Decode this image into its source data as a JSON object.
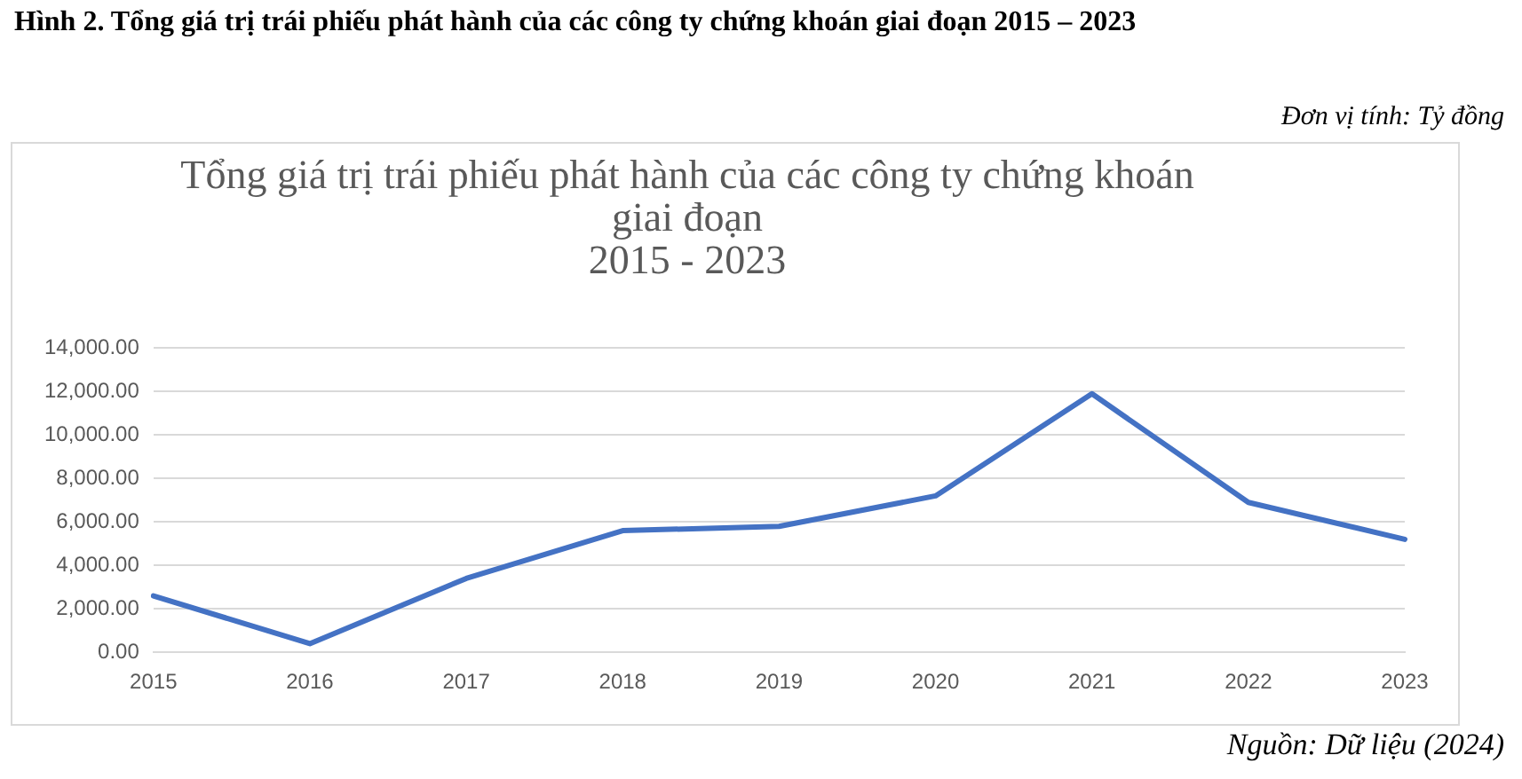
{
  "chart_data": {
    "type": "line",
    "title": "Hình 2. Tổng giá trị trái phiếu phát hành của các công ty chứng khoán giai đoạn 2015 – 2023",
    "subtitle": "Tổng giá trị trái phiếu phát hành của các công ty chứng khoán\ngiai đoạn\n2015 - 2023",
    "categories": [
      "2015",
      "2016",
      "2017",
      "2018",
      "2019",
      "2020",
      "2021",
      "2022",
      "2023"
    ],
    "series": [
      {
        "color": "#4472c4",
        "values": [
          2600,
          400,
          3400,
          5600,
          5800,
          7200,
          11900,
          6900,
          5200
        ]
      }
    ],
    "ylim": [
      0,
      14000
    ],
    "yticks": [
      {
        "value": 0,
        "label": "0.00"
      },
      {
        "value": 2000,
        "label": "2,000.00"
      },
      {
        "value": 4000,
        "label": "4,000.00"
      },
      {
        "value": 6000,
        "label": "6,000.00"
      },
      {
        "value": 8000,
        "label": "8,000.00"
      },
      {
        "value": 10000,
        "label": "10,000.00"
      },
      {
        "value": 12000,
        "label": "12,000.00"
      },
      {
        "value": 14000,
        "label": "14,000.00"
      }
    ],
    "grid": "y",
    "legend": false,
    "marker": "none",
    "line_style": "solid",
    "annotations": [
      "Đơn vị tính: Tỷ đồng",
      "Nguồn: Dữ liệu (2024)"
    ]
  }
}
